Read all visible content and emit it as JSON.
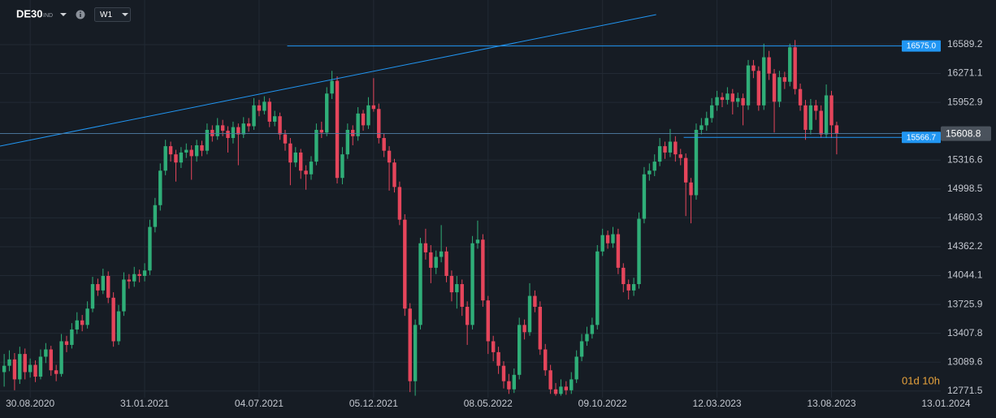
{
  "chart_data": {
    "type": "candlestick",
    "symbol": "DE30",
    "symbol_type": "IND",
    "timeframe": "W1",
    "countdown": "01d 10h",
    "up_color": "#2fae78",
    "down_color": "#e5455b",
    "grid": true,
    "ylim": [
      12698,
      17081
    ],
    "xlim": [
      -0.8,
      180
    ],
    "yticks": [
      12771.5,
      13089.6,
      13407.8,
      13725.9,
      14044.1,
      14362.2,
      14680.3,
      14998.5,
      15316.6,
      15952.9,
      16271.1,
      16589.2
    ],
    "xticks": [
      {
        "value": 5,
        "label": "30.08.2020"
      },
      {
        "value": 27,
        "label": "31.01.2021"
      },
      {
        "value": 49,
        "label": "04.07.2021"
      },
      {
        "value": 71,
        "label": "05.12.2021"
      },
      {
        "value": 93,
        "label": "08.05.2022"
      },
      {
        "value": 115,
        "label": "09.10.2022"
      },
      {
        "value": 137,
        "label": "12.03.2023"
      },
      {
        "value": 159,
        "label": "13.08.2023"
      },
      {
        "value": 181,
        "label": "13.01.2024"
      }
    ],
    "current_price": 15608.8,
    "levels": [
      {
        "value": 16575.0,
        "label": "16575.0",
        "start": 54.4,
        "color": "#2196f3"
      },
      {
        "value": 15566.7,
        "label": "15566.7",
        "start": 130.6,
        "color": "#2196f3"
      }
    ],
    "trendline": {
      "from": [
        -0.8,
        15471
      ],
      "to": [
        125.3,
        16920
      ],
      "color": "#2196f3"
    },
    "candles": [
      [
        12980,
        13180,
        12820,
        13050
      ],
      [
        13050,
        13220,
        12990,
        13120
      ],
      [
        13120,
        13190,
        12780,
        12900
      ],
      [
        12900,
        13260,
        12850,
        13180
      ],
      [
        13180,
        13240,
        12900,
        12980
      ],
      [
        12980,
        13130,
        12920,
        13060
      ],
      [
        13060,
        13110,
        12870,
        12930
      ],
      [
        12930,
        13230,
        12900,
        13150
      ],
      [
        13150,
        13300,
        13080,
        13230
      ],
      [
        13230,
        13270,
        12940,
        13000
      ],
      [
        13000,
        13060,
        12880,
        12960
      ],
      [
        12960,
        13400,
        12930,
        13320
      ],
      [
        13320,
        13380,
        13200,
        13280
      ],
      [
        13280,
        13520,
        13240,
        13450
      ],
      [
        13450,
        13640,
        13400,
        13550
      ],
      [
        13550,
        13610,
        13430,
        13500
      ],
      [
        13500,
        13760,
        13460,
        13680
      ],
      [
        13680,
        14030,
        13640,
        13950
      ],
      [
        13950,
        14010,
        13820,
        13880
      ],
      [
        13880,
        14120,
        13840,
        14040
      ],
      [
        14040,
        14090,
        13740,
        13800
      ],
      [
        13800,
        13860,
        13260,
        13320
      ],
      [
        13320,
        13720,
        13280,
        13650
      ],
      [
        13650,
        14080,
        13600,
        14000
      ],
      [
        14000,
        14060,
        13900,
        13980
      ],
      [
        13980,
        14140,
        13920,
        14060
      ],
      [
        14060,
        14110,
        13970,
        14040
      ],
      [
        14040,
        14180,
        13980,
        14100
      ],
      [
        14100,
        14660,
        14050,
        14580
      ],
      [
        14580,
        14900,
        14520,
        14820
      ],
      [
        14820,
        15280,
        14760,
        15200
      ],
      [
        15200,
        15540,
        15150,
        15470
      ],
      [
        15470,
        15520,
        15300,
        15380
      ],
      [
        15380,
        15430,
        15080,
        15290
      ],
      [
        15290,
        15460,
        15230,
        15400
      ],
      [
        15400,
        15500,
        15340,
        15430
      ],
      [
        15430,
        15480,
        15100,
        15360
      ],
      [
        15360,
        15540,
        15300,
        15480
      ],
      [
        15480,
        15530,
        15360,
        15420
      ],
      [
        15420,
        15720,
        15380,
        15650
      ],
      [
        15650,
        15700,
        15520,
        15580
      ],
      [
        15580,
        15780,
        15540,
        15700
      ],
      [
        15700,
        15760,
        15580,
        15640
      ],
      [
        15640,
        15690,
        15400,
        15560
      ],
      [
        15560,
        15740,
        15500,
        15680
      ],
      [
        15680,
        15720,
        15260,
        15600
      ],
      [
        15600,
        15790,
        15560,
        15720
      ],
      [
        15720,
        15780,
        15630,
        15690
      ],
      [
        15690,
        16000,
        15650,
        15920
      ],
      [
        15920,
        15980,
        15800,
        15860
      ],
      [
        15860,
        16020,
        15820,
        15960
      ],
      [
        15960,
        16000,
        15680,
        15740
      ],
      [
        15740,
        15860,
        15690,
        15800
      ],
      [
        15800,
        15840,
        15540,
        15600
      ],
      [
        15600,
        15650,
        15420,
        15500
      ],
      [
        15500,
        15560,
        15040,
        15290
      ],
      [
        15290,
        15460,
        15240,
        15400
      ],
      [
        15400,
        15440,
        15110,
        15200
      ],
      [
        15200,
        15260,
        14990,
        15160
      ],
      [
        15160,
        15360,
        15100,
        15300
      ],
      [
        15300,
        15720,
        15260,
        15650
      ],
      [
        15650,
        15740,
        15560,
        15620
      ],
      [
        15620,
        16120,
        15580,
        16050
      ],
      [
        16050,
        16300,
        15990,
        16190
      ],
      [
        16190,
        16240,
        15060,
        15120
      ],
      [
        15120,
        15460,
        15050,
        15380
      ],
      [
        15380,
        15720,
        15330,
        15650
      ],
      [
        15650,
        15700,
        15480,
        15580
      ],
      [
        15580,
        15900,
        15530,
        15830
      ],
      [
        15830,
        15870,
        15640,
        15700
      ],
      [
        15700,
        16010,
        15660,
        15920
      ],
      [
        15920,
        16220,
        15850,
        15880
      ],
      [
        15880,
        15940,
        15500,
        15560
      ],
      [
        15560,
        15610,
        15350,
        15420
      ],
      [
        15420,
        15470,
        14980,
        15290
      ],
      [
        15290,
        15330,
        14960,
        15020
      ],
      [
        15020,
        15080,
        14600,
        14660
      ],
      [
        14660,
        14720,
        13600,
        13680
      ],
      [
        13680,
        13740,
        12760,
        12880
      ],
      [
        12880,
        13560,
        12720,
        13500
      ],
      [
        13500,
        14460,
        13450,
        14400
      ],
      [
        14400,
        14560,
        14220,
        14300
      ],
      [
        14300,
        14380,
        13960,
        14130
      ],
      [
        14130,
        14320,
        14060,
        14250
      ],
      [
        14250,
        14600,
        14190,
        14310
      ],
      [
        14310,
        14360,
        13970,
        14040
      ],
      [
        14040,
        14100,
        13760,
        13860
      ],
      [
        13860,
        14040,
        13680,
        13950
      ],
      [
        13950,
        14000,
        13600,
        13700
      ],
      [
        13700,
        13760,
        13280,
        13500
      ],
      [
        13500,
        14480,
        13450,
        14400
      ],
      [
        14400,
        14650,
        14340,
        14440
      ],
      [
        14440,
        14500,
        13700,
        13770
      ],
      [
        13770,
        13820,
        13180,
        13320
      ],
      [
        13320,
        13380,
        13100,
        13200
      ],
      [
        13200,
        13260,
        12960,
        13050
      ],
      [
        13050,
        13100,
        12800,
        12880
      ],
      [
        12880,
        12960,
        12740,
        12790
      ],
      [
        12790,
        13020,
        12750,
        12950
      ],
      [
        12950,
        13580,
        12900,
        13500
      ],
      [
        13500,
        13560,
        13340,
        13420
      ],
      [
        13420,
        13960,
        13380,
        13820
      ],
      [
        13820,
        13880,
        13640,
        13700
      ],
      [
        13700,
        13760,
        13170,
        13230
      ],
      [
        13230,
        13290,
        12940,
        13000
      ],
      [
        13000,
        13060,
        12740,
        12790
      ],
      [
        12790,
        12860,
        12720,
        12740
      ],
      [
        12740,
        12900,
        12720,
        12820
      ],
      [
        12820,
        12880,
        12730,
        12780
      ],
      [
        12780,
        12980,
        12740,
        12900
      ],
      [
        12900,
        13220,
        12860,
        13150
      ],
      [
        13150,
        13400,
        13100,
        13320
      ],
      [
        13320,
        13480,
        13270,
        13400
      ],
      [
        13400,
        13580,
        13350,
        13500
      ],
      [
        13500,
        14380,
        13450,
        14310
      ],
      [
        14310,
        14560,
        14260,
        14490
      ],
      [
        14490,
        14540,
        14340,
        14400
      ],
      [
        14400,
        14580,
        14350,
        14500
      ],
      [
        14500,
        14560,
        14060,
        14130
      ],
      [
        14130,
        14180,
        13860,
        13950
      ],
      [
        13950,
        14000,
        13780,
        13880
      ],
      [
        13880,
        14020,
        13820,
        13950
      ],
      [
        13950,
        14740,
        13900,
        14670
      ],
      [
        14670,
        15240,
        14620,
        15160
      ],
      [
        15160,
        15280,
        15090,
        15200
      ],
      [
        15200,
        15380,
        15140,
        15300
      ],
      [
        15300,
        15560,
        15250,
        15470
      ],
      [
        15470,
        15520,
        15330,
        15400
      ],
      [
        15400,
        15660,
        15350,
        15520
      ],
      [
        15520,
        15580,
        15300,
        15380
      ],
      [
        15380,
        15440,
        15260,
        15340
      ],
      [
        15340,
        15390,
        14700,
        15070
      ],
      [
        15070,
        15120,
        14620,
        14930
      ],
      [
        14930,
        15720,
        14880,
        15650
      ],
      [
        15650,
        15780,
        15600,
        15700
      ],
      [
        15700,
        15850,
        15640,
        15780
      ],
      [
        15780,
        16000,
        15730,
        15920
      ],
      [
        15920,
        16080,
        15860,
        16010
      ],
      [
        16010,
        16060,
        15900,
        15980
      ],
      [
        15980,
        16120,
        15930,
        16050
      ],
      [
        16050,
        16100,
        15820,
        15960
      ],
      [
        15960,
        16060,
        15900,
        16000
      ],
      [
        16000,
        16050,
        15700,
        15920
      ],
      [
        15920,
        16420,
        15870,
        16360
      ],
      [
        16360,
        16420,
        16220,
        16300
      ],
      [
        16300,
        16350,
        15860,
        15920
      ],
      [
        15920,
        16600,
        15870,
        16450
      ],
      [
        16450,
        16520,
        16200,
        16270
      ],
      [
        16270,
        16320,
        15620,
        15960
      ],
      [
        15960,
        16300,
        15900,
        16230
      ],
      [
        16230,
        16290,
        16100,
        16180
      ],
      [
        16180,
        16600,
        16130,
        16560
      ],
      [
        16560,
        16640,
        16040,
        16100
      ],
      [
        16100,
        16160,
        15860,
        15920
      ],
      [
        15920,
        15980,
        15540,
        15650
      ],
      [
        15650,
        15990,
        15600,
        15920
      ],
      [
        15920,
        15980,
        15760,
        15860
      ],
      [
        15860,
        15920,
        15560,
        15600
      ],
      [
        15600,
        16150,
        15560,
        16030
      ],
      [
        16030,
        16080,
        15560,
        15700
      ],
      [
        15700,
        15740,
        15380,
        15608.8
      ]
    ]
  }
}
